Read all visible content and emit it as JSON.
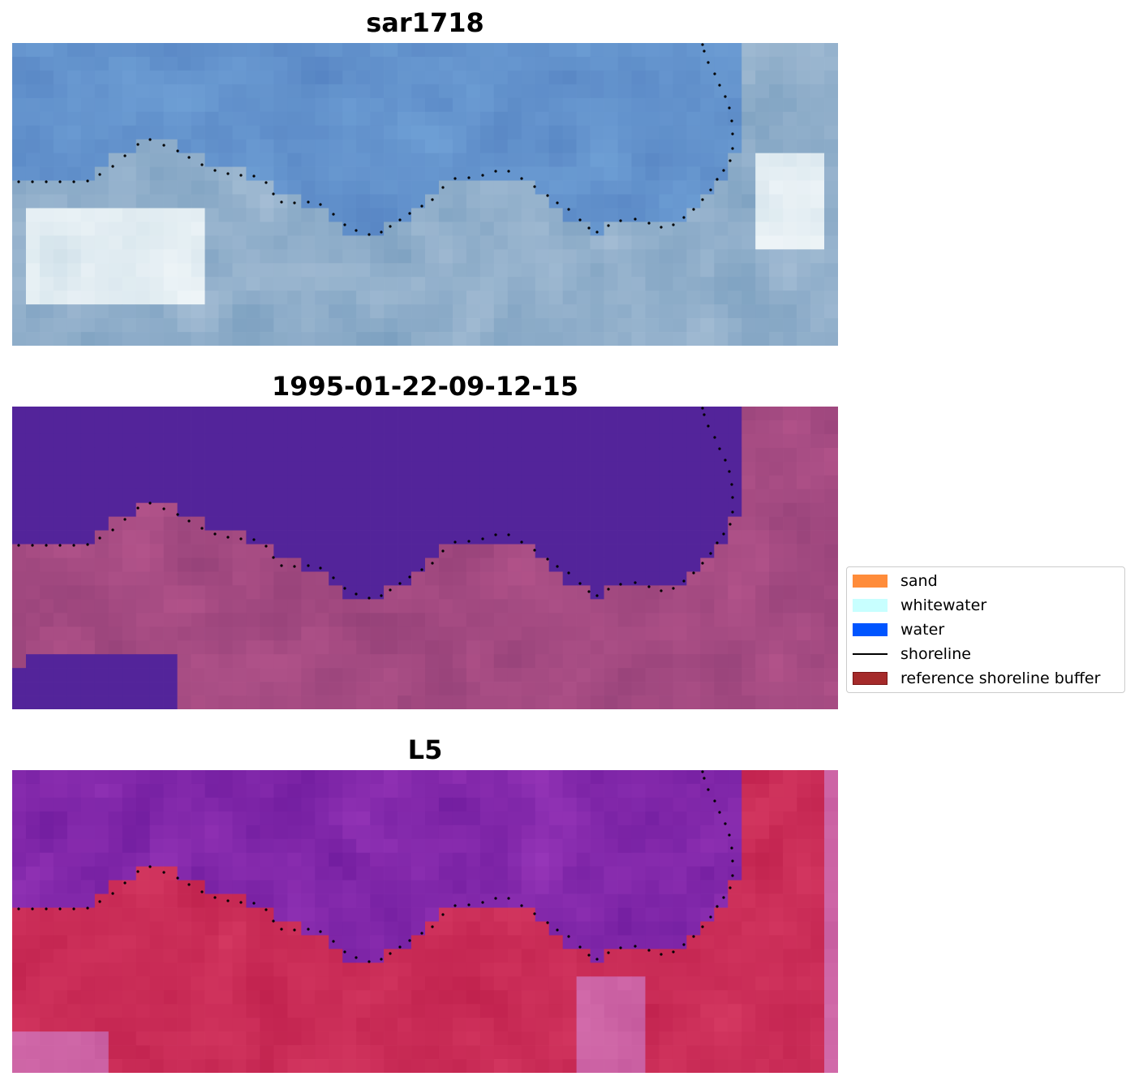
{
  "panels": [
    {
      "id": "sar",
      "title": "sar1718",
      "palette": "sar"
    },
    {
      "id": "class",
      "title": "1995-01-22-09-12-15",
      "palette": "class"
    },
    {
      "id": "l5",
      "title": "L5",
      "palette": "l5"
    }
  ],
  "legend": {
    "items": [
      {
        "label": "sand",
        "kind": "patch",
        "color": "#ff8c3a"
      },
      {
        "label": "whitewater",
        "kind": "patch",
        "color": "#c8ffff"
      },
      {
        "label": "water",
        "kind": "patch",
        "color": "#0055ff"
      },
      {
        "label": "shoreline",
        "kind": "line",
        "color": "#000000"
      },
      {
        "label": "reference shoreline buffer",
        "kind": "patch",
        "color": "#a52a2a",
        "edge": "#7a1515"
      }
    ]
  },
  "colors": {
    "shoreline_dots": "#000000",
    "water_class": "#53249a",
    "sar_base": "#5f88c0",
    "l5_water": "#7a2aa0",
    "l5_land": "#c8284f"
  }
}
